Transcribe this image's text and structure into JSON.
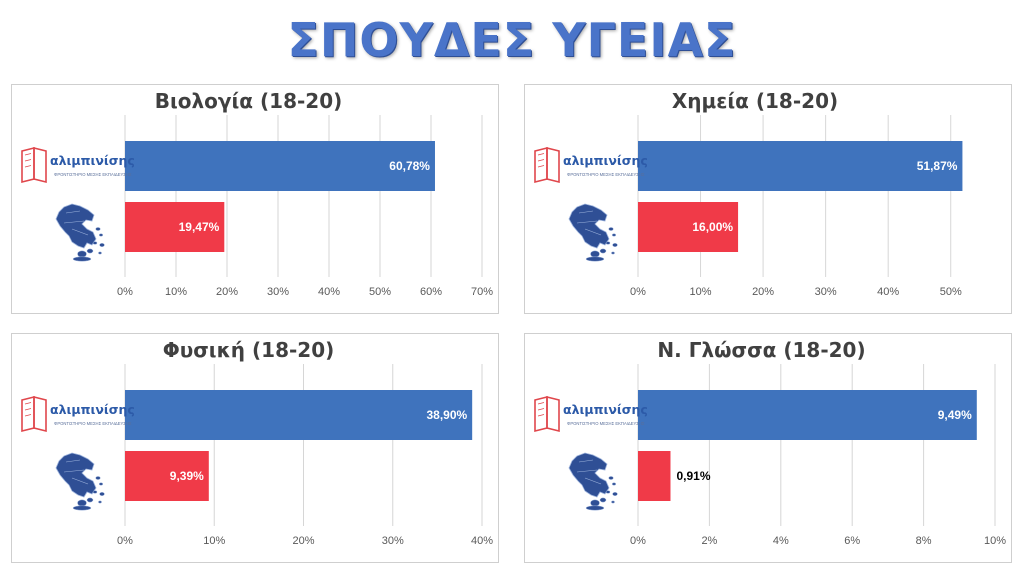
{
  "page": {
    "title": "ΣΠΟΥΔΕΣ ΥΓΕΙΑΣ",
    "logo_text": "αλιμπινίσης",
    "logo_subtext": "ΦΡΟΝΤΙΣΤΗΡΙΟ ΜΕΣΗΣ ΕΚΠΑΙΔΕΥΣΗΣ",
    "colors": {
      "title": "#4a74c9",
      "logo_bar": "#3f73bd",
      "country_bar": "#f03a48",
      "gridline": "#d6d6d6"
    },
    "icons": {
      "logo_row": "alimpinisis-logo-icon",
      "country_row": "greece-map-icon"
    }
  },
  "chart_data": [
    {
      "type": "bar",
      "orientation": "horizontal",
      "title": "Βιολογία (18-20)",
      "categories": [
        "αλιμπινίσης",
        "Ελλάδα"
      ],
      "values": [
        60.78,
        19.47
      ],
      "value_labels": [
        "60,78%",
        "19,47%"
      ],
      "label_inside": [
        true,
        true
      ],
      "xlim": [
        0,
        70
      ],
      "ticks": [
        0,
        10,
        20,
        30,
        40,
        50,
        60,
        70
      ],
      "tick_labels": [
        "0%",
        "10%",
        "20%",
        "30%",
        "40%",
        "50%",
        "60%",
        "70%"
      ],
      "grid": true,
      "legend": "none"
    },
    {
      "type": "bar",
      "orientation": "horizontal",
      "title": "Χημεία (18-20)",
      "categories": [
        "αλιμπινίσης",
        "Ελλάδα"
      ],
      "values": [
        51.87,
        16.0
      ],
      "value_labels": [
        "51,87%",
        "16,00%"
      ],
      "label_inside": [
        true,
        true
      ],
      "xlim": [
        0,
        55
      ],
      "ticks": [
        0,
        10,
        20,
        30,
        40,
        50
      ],
      "tick_labels": [
        "0%",
        "10%",
        "20%",
        "30%",
        "40%",
        "50%"
      ],
      "grid": true,
      "legend": "none"
    },
    {
      "type": "bar",
      "orientation": "horizontal",
      "title": "Φυσική (18-20)",
      "categories": [
        "αλιμπινίσης",
        "Ελλάδα"
      ],
      "values": [
        38.9,
        9.39
      ],
      "value_labels": [
        "38,90%",
        "9,39%"
      ],
      "label_inside": [
        true,
        true
      ],
      "xlim": [
        0,
        40
      ],
      "ticks": [
        0,
        10,
        20,
        30,
        40
      ],
      "tick_labels": [
        "0%",
        "10%",
        "20%",
        "30%",
        "40%"
      ],
      "grid": true,
      "legend": "none"
    },
    {
      "type": "bar",
      "orientation": "horizontal",
      "title": "Ν. Γλώσσα (18-20)",
      "categories": [
        "αλιμπινίσης",
        "Ελλάδα"
      ],
      "values": [
        9.49,
        0.91
      ],
      "value_labels": [
        "9,49%",
        "0,91%"
      ],
      "label_inside": [
        true,
        false
      ],
      "xlim": [
        0,
        10
      ],
      "ticks": [
        0,
        2,
        4,
        6,
        8,
        10
      ],
      "tick_labels": [
        "0%",
        "2%",
        "4%",
        "6%",
        "8%",
        "10%"
      ],
      "grid": true,
      "legend": "none"
    }
  ]
}
